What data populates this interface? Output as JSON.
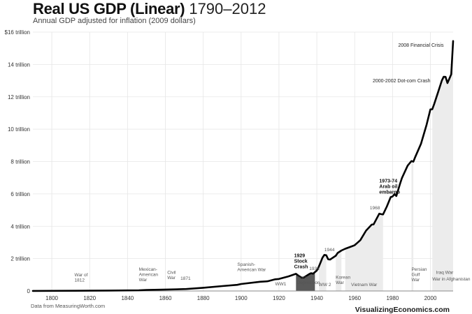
{
  "title_bold": "Real US GDP (Linear)",
  "title_light": "1790–2012",
  "subtitle": "Annual GDP adjusted for inflation (2009 dollars)",
  "source": "Data from MeasuringWorth.com",
  "brand": {
    "prefix": "Visualizing",
    "highlight": "Economics",
    "suffix": ".com"
  },
  "colors": {
    "line": "#000000",
    "shade_light": "#ececec",
    "shade_dark": "#5a5a5a",
    "grid": "#e6e6e6",
    "axis": "#888888"
  },
  "chart_data": {
    "type": "line",
    "title": "Real US GDP (Linear) 1790–2012",
    "subtitle": "Annual GDP adjusted for inflation (2009 dollars)",
    "xlabel": "",
    "ylabel": "",
    "xlim": [
      1790,
      2012
    ],
    "ylim": [
      0,
      16
    ],
    "x_ticks": [
      1800,
      1820,
      1840,
      1860,
      1880,
      1900,
      1920,
      1940,
      1960,
      1980,
      2000
    ],
    "y_ticks": [
      {
        "value": 0,
        "label": "0"
      },
      {
        "value": 2,
        "label": "2 trillion"
      },
      {
        "value": 4,
        "label": "4 trillion"
      },
      {
        "value": 6,
        "label": "6 trillion"
      },
      {
        "value": 8,
        "label": "8 trillion"
      },
      {
        "value": 10,
        "label": "10 trillion"
      },
      {
        "value": 12,
        "label": "12 trillion"
      },
      {
        "value": 14,
        "label": "14 trillion"
      },
      {
        "value": 16,
        "label": "$16 trillion"
      }
    ],
    "grid": true,
    "series": [
      {
        "x": [
          1790,
          1800,
          1812,
          1820,
          1830,
          1840,
          1846,
          1850,
          1861,
          1865,
          1871,
          1880,
          1890,
          1898,
          1900,
          1910,
          1914,
          1918,
          1920,
          1925,
          1929,
          1930,
          1932,
          1933,
          1936,
          1937,
          1938,
          1940,
          1941,
          1942,
          1943,
          1944,
          1945,
          1946,
          1947,
          1948,
          1950,
          1951,
          1953,
          1955,
          1958,
          1960,
          1963,
          1966,
          1969,
          1970,
          1973,
          1974,
          1975,
          1977,
          1979,
          1980,
          1981,
          1982,
          1984,
          1985,
          1988,
          1990,
          1991,
          1992,
          1995,
          1998,
          2000,
          2001,
          2002,
          2004,
          2006,
          2007,
          2008,
          2009,
          2010,
          2011,
          2012
        ],
        "y": [
          0.004,
          0.007,
          0.012,
          0.016,
          0.025,
          0.035,
          0.045,
          0.06,
          0.09,
          0.1,
          0.12,
          0.2,
          0.3,
          0.38,
          0.43,
          0.57,
          0.6,
          0.72,
          0.74,
          0.9,
          1.06,
          0.97,
          0.82,
          0.82,
          1.05,
          1.1,
          1.07,
          1.27,
          1.49,
          1.77,
          2.06,
          2.23,
          2.21,
          1.96,
          1.94,
          2.02,
          2.18,
          2.35,
          2.5,
          2.61,
          2.74,
          2.83,
          3.14,
          3.73,
          4.1,
          4.12,
          4.78,
          4.75,
          4.73,
          5.22,
          5.8,
          5.84,
          5.98,
          5.87,
          6.64,
          6.99,
          7.75,
          8.03,
          7.99,
          8.29,
          9.09,
          10.28,
          11.22,
          11.23,
          11.55,
          12.26,
          13.0,
          13.24,
          13.23,
          12.85,
          13.12,
          13.39,
          15.45
        ]
      }
    ],
    "shaded_periods": [
      {
        "start": 1929,
        "end": 1939,
        "style": "dark"
      },
      {
        "start": 1941,
        "end": 1945,
        "style": "light"
      },
      {
        "start": 1950,
        "end": 1953,
        "style": "light"
      },
      {
        "start": 1955,
        "end": 1975,
        "style": "light"
      },
      {
        "start": 1990,
        "end": 1991,
        "style": "light"
      },
      {
        "start": 2001,
        "end": 2012,
        "style": "light"
      }
    ],
    "annotations": [
      {
        "x": 1812,
        "y": 0.9,
        "lines": [
          "War of",
          "1812"
        ],
        "style": "small",
        "anchor": "start"
      },
      {
        "x": 1846,
        "y": 1.25,
        "lines": [
          "Mexican-",
          "American",
          "War"
        ],
        "style": "small",
        "anchor": "start"
      },
      {
        "x": 1861,
        "y": 1.05,
        "lines": [
          "Civil",
          "War"
        ],
        "style": "small",
        "anchor": "start"
      },
      {
        "x": 1868,
        "y": 0.7,
        "lines": [
          "1871"
        ],
        "style": "small",
        "anchor": "start"
      },
      {
        "x": 1898,
        "y": 1.55,
        "lines": [
          "Spanish-",
          "American War"
        ],
        "style": "small",
        "anchor": "start"
      },
      {
        "x": 1918,
        "y": 0.35,
        "lines": [
          "WW1"
        ],
        "style": "small",
        "anchor": "start"
      },
      {
        "x": 1928,
        "y": 2.1,
        "lines": [
          "1929",
          "Stock",
          "Crash"
        ],
        "style": "bold",
        "anchor": "start"
      },
      {
        "x": 1936,
        "y": 1.3,
        "lines": [
          "1936"
        ],
        "style": "small",
        "anchor": "start"
      },
      {
        "x": 1944,
        "y": 2.45,
        "lines": [
          "1944"
        ],
        "style": "small",
        "anchor": "start"
      },
      {
        "x": 1929.5,
        "y": 0.75,
        "lines": [
          "Great",
          "Depression"
        ],
        "style": "small",
        "anchor": "start"
      },
      {
        "x": 1941,
        "y": 0.3,
        "lines": [
          "WW 2"
        ],
        "style": "small",
        "anchor": "start"
      },
      {
        "x": 1950,
        "y": 0.75,
        "lines": [
          "Korean",
          "War"
        ],
        "style": "small",
        "anchor": "start"
      },
      {
        "x": 1965,
        "y": 0.3,
        "lines": [
          "Vietnam War"
        ],
        "style": "small",
        "anchor": "middle"
      },
      {
        "x": 1968,
        "y": 5.05,
        "lines": [
          "1968"
        ],
        "style": "small",
        "anchor": "start"
      },
      {
        "x": 1973,
        "y": 6.7,
        "lines": [
          "1973-74",
          "Arab oil",
          "embargo"
        ],
        "style": "bold",
        "anchor": "start"
      },
      {
        "x": 1990,
        "y": 1.25,
        "lines": [
          "Persian",
          "Gulf",
          "War"
        ],
        "style": "small",
        "anchor": "start"
      },
      {
        "x": 2003,
        "y": 1.05,
        "lines": [
          "Iraq War"
        ],
        "style": "small",
        "anchor": "start"
      },
      {
        "x": 2001,
        "y": 0.65,
        "lines": [
          "War in Afghanistan"
        ],
        "style": "small",
        "anchor": "start"
      },
      {
        "x": 2000,
        "y": 12.9,
        "lines": [
          "2000-2002 Dot-com Crash"
        ],
        "style": "mid",
        "anchor": "end"
      },
      {
        "x": 2007,
        "y": 15.1,
        "lines": [
          "2008 Financial Crisis"
        ],
        "style": "mid",
        "anchor": "end"
      }
    ]
  }
}
